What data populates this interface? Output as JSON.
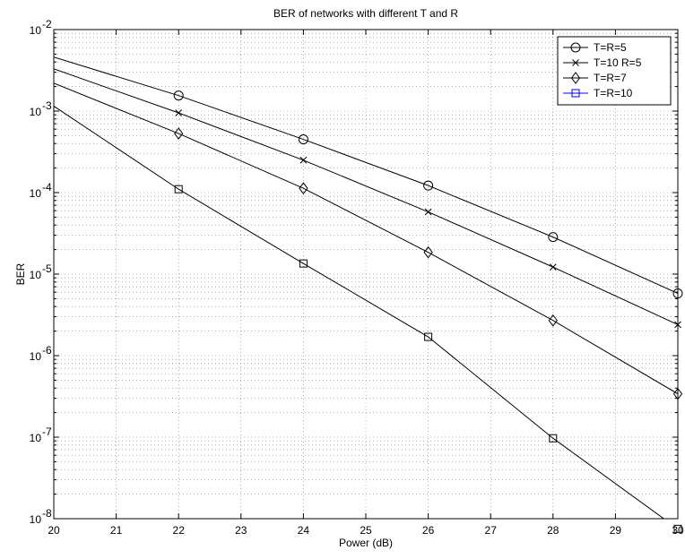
{
  "chart_data": {
    "type": "line",
    "title": "BER of networks with different T and R",
    "xlabel": "Power (dB)",
    "ylabel": "BER",
    "xlim": [
      20,
      30
    ],
    "ylim": [
      1e-08,
      0.01
    ],
    "yscale": "log",
    "grid": true,
    "legend_position": "top-right",
    "x_ticks": [
      "20",
      "21",
      "22",
      "23",
      "24",
      "25",
      "26",
      "27",
      "28",
      "29",
      "30"
    ],
    "y_tick_exponents": [
      "-8",
      "-7",
      "-6",
      "-5",
      "-4",
      "-3",
      "-2"
    ],
    "y_tick_base": "10",
    "series": [
      {
        "name": "T=R=5",
        "marker": "circle",
        "color": "#000000",
        "x": [
          20,
          22,
          24,
          26,
          28,
          30
        ],
        "y": [
          0.0046,
          0.00155,
          0.00045,
          0.000122,
          2.85e-05,
          5.8e-06
        ]
      },
      {
        "name": "T=10 R=5",
        "marker": "x",
        "color": "#000000",
        "x": [
          20,
          22,
          24,
          26,
          28,
          30
        ],
        "y": [
          0.0033,
          0.00095,
          0.00025,
          5.8e-05,
          1.22e-05,
          2.4e-06
        ]
      },
      {
        "name": "T=R=7",
        "marker": "diamond",
        "color": "#000000",
        "x": [
          20,
          22,
          24,
          26,
          28,
          30
        ],
        "y": [
          0.0022,
          0.00053,
          0.000113,
          1.85e-05,
          2.7e-06,
          3.4e-07
        ]
      },
      {
        "name": "T=R=10",
        "marker": "square",
        "color": "#000000",
        "legend_color": "#0000ff",
        "x": [
          20,
          22,
          24,
          26,
          28,
          30
        ],
        "y": [
          0.00115,
          0.00011,
          1.35e-05,
          1.7e-06,
          9.7e-08,
          7.5e-09
        ]
      }
    ]
  }
}
